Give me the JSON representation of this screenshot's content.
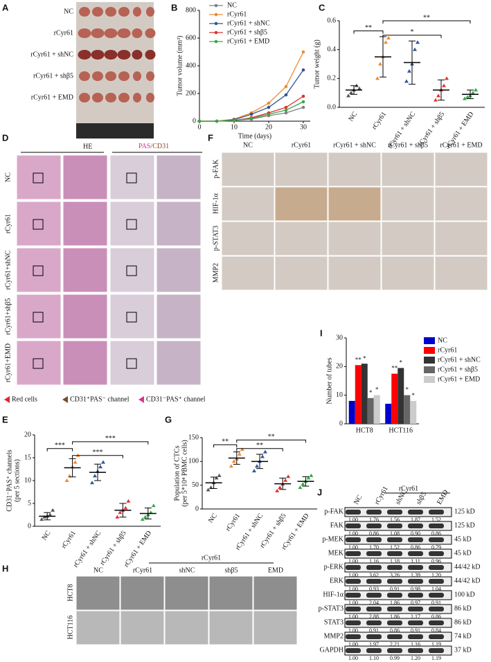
{
  "panel_labels": [
    "A",
    "B",
    "C",
    "D",
    "E",
    "F",
    "G",
    "H",
    "I",
    "J"
  ],
  "panel_a": {
    "rows": [
      "NC",
      "rCyr61",
      "rCyr61 + shNC",
      "rCyr61 + shβ5",
      "rCyr61 + EMD"
    ]
  },
  "panel_d": {
    "stain_1": "HE",
    "stain_2": [
      "PAS",
      "/CD31"
    ],
    "rows": [
      "NC",
      "rCyr61",
      "rCyr61+shNC",
      "rCyr61+shβ5",
      "rCyr61+EMD"
    ],
    "legend": [
      "Red cells",
      "CD31⁺PAS⁻ channel",
      "CD31⁻PAS⁺ channel"
    ]
  },
  "panel_f": {
    "columns": [
      "NC",
      "rCyr61",
      "rCyr61 + shNC",
      "rCyr61 + shβ5",
      "rCyr61 + EMD"
    ],
    "rows": [
      "p-FAK",
      "HIF-1α",
      "p-STAT3",
      "MMP2"
    ]
  },
  "panel_h": {
    "group": "rCyr61",
    "columns": [
      "NC",
      "rCyr61",
      "shNC",
      "shβ5",
      "EMD"
    ],
    "rows": [
      "HCT8",
      "HCT116"
    ]
  },
  "panel_j": {
    "group": "rCyr61",
    "columns": [
      "NC",
      "rCyr61",
      "shNC",
      "shβ5",
      "EMD"
    ],
    "blots": [
      {
        "name": "p-FAK",
        "values": [
          "1.00",
          "1.76",
          "1.56",
          "1.87",
          "1.52"
        ],
        "size": "125 kD"
      },
      {
        "name": "FAK",
        "values": [
          "1.00",
          "0.86",
          "1.08",
          "0.90",
          "0.86"
        ],
        "size": "125 kD"
      },
      {
        "name": "p-MEK",
        "values": [
          "1.00",
          "1.70",
          "1.52",
          "0.86",
          "0.79"
        ],
        "size": "45 kD"
      },
      {
        "name": "MEK",
        "values": [
          "1.00",
          "1.16",
          "1.18",
          "1.11",
          "0.96"
        ],
        "size": "45 kD"
      },
      {
        "name": "p-ERK",
        "values": [
          "1.00",
          "3.62",
          "3.26",
          "1.39",
          "1.20"
        ],
        "size": "44/42 kD"
      },
      {
        "name": "ERK",
        "values": [
          "1.00",
          "0.93",
          "0.91",
          "0.98",
          "1.04"
        ],
        "size": "44/42 kD"
      },
      {
        "name": "HIF-1α",
        "values": [
          "1.00",
          "2.04",
          "1.86",
          "0.97",
          "0.91"
        ],
        "size": "100 kD"
      },
      {
        "name": "p-STAT3",
        "values": [
          "1.00",
          "2.88",
          "1.86",
          "1.17",
          "0.86"
        ],
        "size": "86 kD"
      },
      {
        "name": "STAT3",
        "values": [
          "1.00",
          "0.91",
          "0.86",
          "0.91",
          "0.84"
        ],
        "size": "86 kD"
      },
      {
        "name": "MMP2",
        "values": [
          "1.00",
          "1.97",
          "2.21",
          "1.16",
          "1.19"
        ],
        "size": "74 kD"
      },
      {
        "name": "GAPDH",
        "values": [
          "1.00",
          "1.10",
          "0.99",
          "1.20",
          "1.19"
        ],
        "size": "37 kD"
      }
    ]
  },
  "chart_data": [
    {
      "type": "line",
      "x": [
        0,
        5,
        10,
        15,
        20,
        25,
        30
      ],
      "xlim": [
        0,
        32
      ],
      "xticks": [
        0,
        10,
        20,
        30
      ],
      "ylim": [
        0,
        800
      ],
      "yticks": [
        0,
        200,
        400,
        600,
        800
      ],
      "xlabel": "Time (days)",
      "ylabel": "Tumor volume (mm³)",
      "series": [
        {
          "name": "NC",
          "color": "#808080",
          "values": [
            0,
            0,
            5,
            15,
            40,
            60,
            100
          ]
        },
        {
          "name": "rCyr61",
          "color": "#ed8b2f",
          "values": [
            0,
            0,
            15,
            60,
            130,
            250,
            500
          ]
        },
        {
          "name": "rCyr61 + shNC",
          "color": "#2f5597",
          "values": [
            0,
            0,
            10,
            50,
            100,
            190,
            370
          ]
        },
        {
          "name": "rCyr61 + shβ5",
          "color": "#e03030",
          "values": [
            0,
            0,
            5,
            25,
            60,
            100,
            180
          ]
        },
        {
          "name": "rCyr61 + EMD",
          "color": "#3aa64a",
          "values": [
            0,
            0,
            5,
            20,
            50,
            80,
            140
          ]
        }
      ]
    },
    {
      "type": "strip",
      "categories": [
        "NC",
        "rCyr61",
        "rCyr61 + shNC",
        "rCyr61 + shβ5",
        "rCyr61 + EMD"
      ],
      "colors": [
        "#555555",
        "#ed8b2f",
        "#2f5597",
        "#e03030",
        "#3aa64a"
      ],
      "values": [
        0.12,
        0.35,
        0.31,
        0.12,
        0.09
      ],
      "errors": [
        0.03,
        0.14,
        0.15,
        0.07,
        0.03
      ],
      "points": [
        [
          0.08,
          0.1,
          0.12,
          0.15,
          0.13
        ],
        [
          0.2,
          0.3,
          0.35,
          0.45,
          0.48
        ],
        [
          0.18,
          0.25,
          0.3,
          0.4,
          0.45
        ],
        [
          0.05,
          0.08,
          0.12,
          0.15,
          0.2
        ],
        [
          0.06,
          0.07,
          0.08,
          0.1,
          0.12
        ]
      ],
      "ylim": [
        0,
        0.6
      ],
      "yticks": [
        {
          "value": 0,
          "label": "0.0"
        },
        0.2,
        0.4,
        0.6
      ],
      "ylabel": [
        "Tumor weight (g)"
      ],
      "significance": [
        "**",
        "**",
        "*"
      ]
    },
    {
      "type": "strip",
      "categories": [
        "NC",
        "rCyr61",
        "rCyr61 + shNC",
        "rCyr61 + shβ5",
        "rCyr61 + EMD"
      ],
      "colors": [
        "#555555",
        "#ed8b2f",
        "#2f5597",
        "#e03030",
        "#3aa64a"
      ],
      "values": [
        2.2,
        12.8,
        11.8,
        3.5,
        2.8
      ],
      "errors": [
        0.8,
        2,
        1.8,
        1.5,
        1.2
      ],
      "points": [
        [
          1.5,
          2,
          2.2,
          2.5,
          3.5
        ],
        [
          10,
          11,
          13,
          14,
          15.5
        ],
        [
          9.5,
          11,
          12,
          13,
          14
        ],
        [
          2,
          3,
          3.5,
          4,
          5.5
        ],
        [
          1.5,
          2,
          2.5,
          3,
          4.5
        ]
      ],
      "ylim": [
        0,
        20
      ],
      "yticks": [
        0,
        5,
        10,
        15,
        20
      ],
      "ylabel": [
        "CD31⁻PAS⁺ channels",
        "(per 5 sections)"
      ],
      "significance": [
        "***",
        "***",
        "***"
      ]
    },
    {
      "type": "strip",
      "categories": [
        "NC",
        "rCyr61",
        "rCyr61 + shNC",
        "rCyr61 + shβ5",
        "rCyr61 + EMD"
      ],
      "colors": [
        "#555555",
        "#ed8b2f",
        "#2f5597",
        "#e03030",
        "#3aa64a"
      ],
      "values": [
        55,
        107,
        100,
        53,
        58
      ],
      "errors": [
        12,
        13,
        15,
        12,
        10
      ],
      "points": [
        [
          40,
          45,
          55,
          65,
          70
        ],
        [
          90,
          100,
          105,
          115,
          125
        ],
        [
          80,
          90,
          100,
          110,
          120
        ],
        [
          38,
          45,
          52,
          60,
          68
        ],
        [
          45,
          52,
          58,
          65,
          70
        ]
      ],
      "ylim": [
        0,
        150
      ],
      "yticks": [
        0,
        50,
        100,
        150
      ],
      "ylabel": [
        "Population of CTCs",
        "(per 5*10⁴ PBMC cells)"
      ],
      "significance": [
        "**",
        "**",
        "**"
      ]
    },
    {
      "type": "bar",
      "categories": [
        "HCT8",
        "HCT116"
      ],
      "ylim": [
        0,
        30
      ],
      "yticks": [
        0,
        10,
        20,
        30
      ],
      "ylabel": "Number of tubes",
      "series": [
        {
          "name": "NC",
          "color": "#0000cc",
          "values": [
            8,
            7
          ],
          "significance": [
            null,
            null
          ]
        },
        {
          "name": "rCyr61",
          "color": "#ff0000",
          "values": [
            20.5,
            17.5
          ],
          "significance": [
            "**",
            "**"
          ]
        },
        {
          "name": "rCyr61 + shNC",
          "color": "#333333",
          "values": [
            21,
            19.5
          ],
          "significance": [
            "*",
            "*"
          ]
        },
        {
          "name": "rCyr61 + shβ5",
          "color": "#666666",
          "values": [
            9,
            10
          ],
          "significance": [
            "*",
            "*"
          ]
        },
        {
          "name": "rCyr61 + EMD",
          "color": "#cccccc",
          "values": [
            10,
            8
          ],
          "significance": [
            "*",
            "*"
          ]
        }
      ]
    }
  ]
}
